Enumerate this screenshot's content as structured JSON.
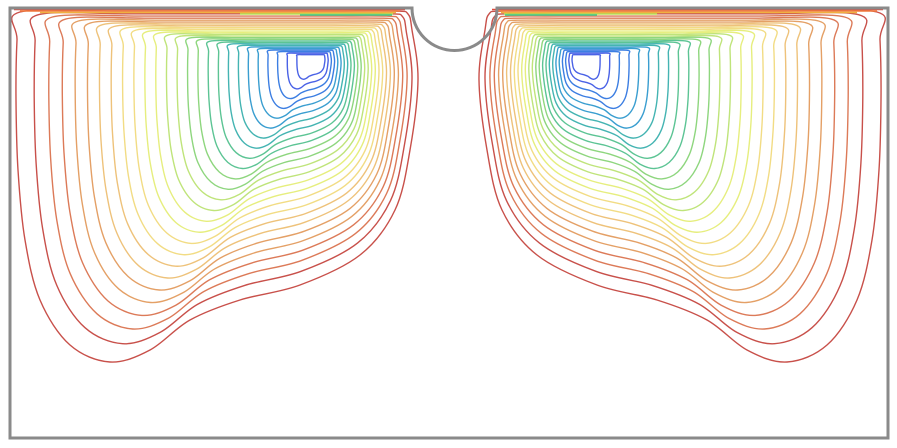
{
  "figure": {
    "kind": "streamline contour plot",
    "domain_shape": "rectangular cavity with semicircular notch at top center",
    "frame_color": "#8a8a8a",
    "palette": [
      "#c8504a",
      "#dc7a58",
      "#e4a066",
      "#eec27a",
      "#f2dc84",
      "#e6ee7e",
      "#bfe47a",
      "#8ed67e",
      "#5cc494",
      "#44b4b2",
      "#3a9ed0",
      "#3c7ee2",
      "#4a62e6"
    ],
    "vortices": [
      {
        "label": "left-vortex",
        "contour_count": 26
      },
      {
        "label": "right-vortex",
        "contour_count": 26
      }
    ]
  }
}
